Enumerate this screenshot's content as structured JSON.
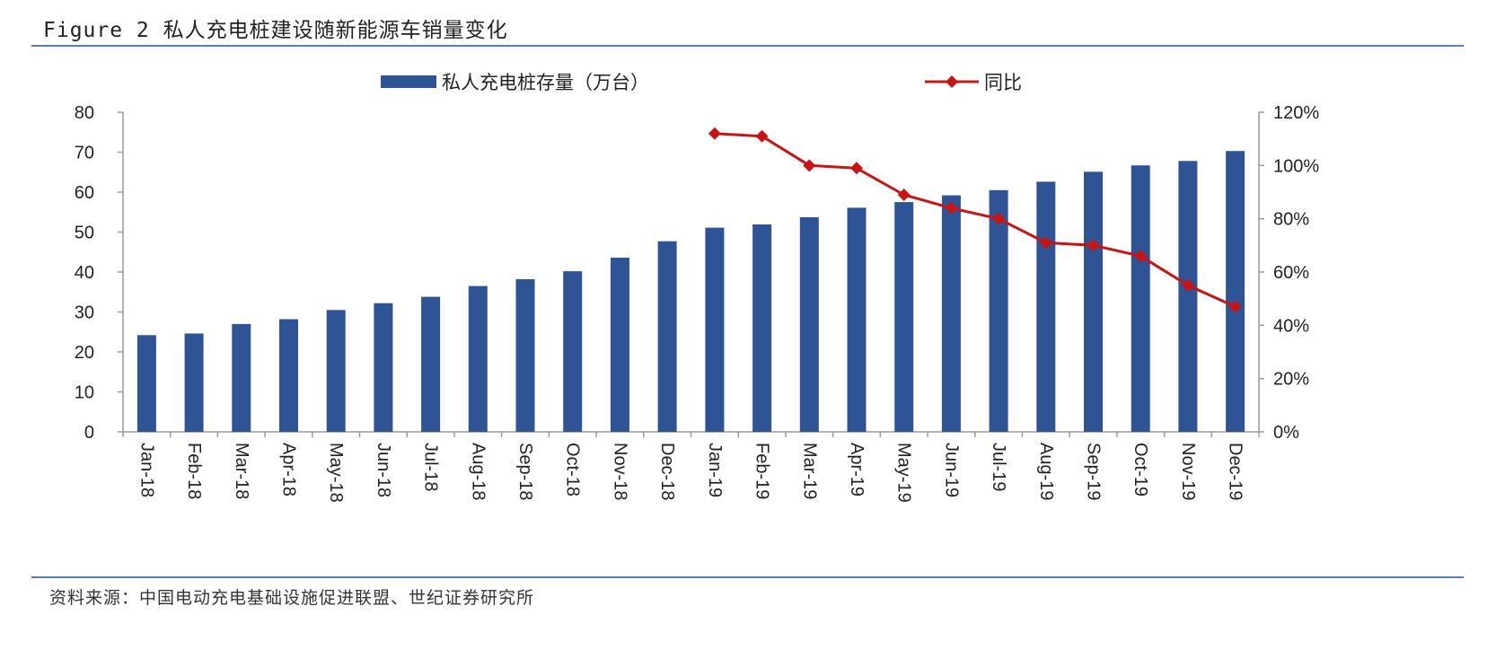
{
  "figure": {
    "title": "Figure 2 私人充电桩建设随新能源车销量变化",
    "source": "资料来源：中国电动充电基础设施促进联盟、世纪证券研究所"
  },
  "colors": {
    "bar": "#2e5496",
    "line": "#c81414",
    "rule": "#5b80b0",
    "axis": "#9a9a9a"
  },
  "chart_data": {
    "type": "bar",
    "categories": [
      "Jan-18",
      "Feb-18",
      "Mar-18",
      "Apr-18",
      "May-18",
      "Jun-18",
      "Jul-18",
      "Aug-18",
      "Sep-18",
      "Oct-18",
      "Nov-18",
      "Dec-18",
      "Jan-19",
      "Feb-19",
      "Mar-19",
      "Apr-19",
      "May-19",
      "Jun-19",
      "Jul-19",
      "Aug-19",
      "Sep-19",
      "Oct-19",
      "Nov-19",
      "Dec-19"
    ],
    "series": [
      {
        "name": "私人充电桩存量（万台）",
        "type": "bar",
        "axis": "left",
        "values": [
          24.2,
          24.6,
          27.0,
          28.2,
          30.5,
          32.2,
          33.8,
          36.5,
          38.2,
          40.2,
          43.6,
          47.7,
          51.1,
          51.9,
          53.7,
          56.1,
          57.5,
          59.2,
          60.5,
          62.6,
          65.1,
          66.7,
          67.8,
          70.3
        ]
      },
      {
        "name": "同比",
        "type": "line",
        "axis": "right",
        "values": [
          null,
          null,
          null,
          null,
          null,
          null,
          null,
          null,
          null,
          null,
          null,
          null,
          1.12,
          1.11,
          1.0,
          0.99,
          0.89,
          0.84,
          0.8,
          0.71,
          0.7,
          0.66,
          0.55,
          0.47
        ]
      }
    ],
    "ylim_left": [
      0,
      80
    ],
    "ylim_right": [
      0,
      1.2
    ],
    "yticks_left": [
      "0",
      "10",
      "20",
      "30",
      "40",
      "50",
      "60",
      "70",
      "80"
    ],
    "yticks_right": [
      "0%",
      "20%",
      "40%",
      "60%",
      "80%",
      "100%",
      "120%"
    ],
    "legend_position": "top-center",
    "grid": false
  }
}
